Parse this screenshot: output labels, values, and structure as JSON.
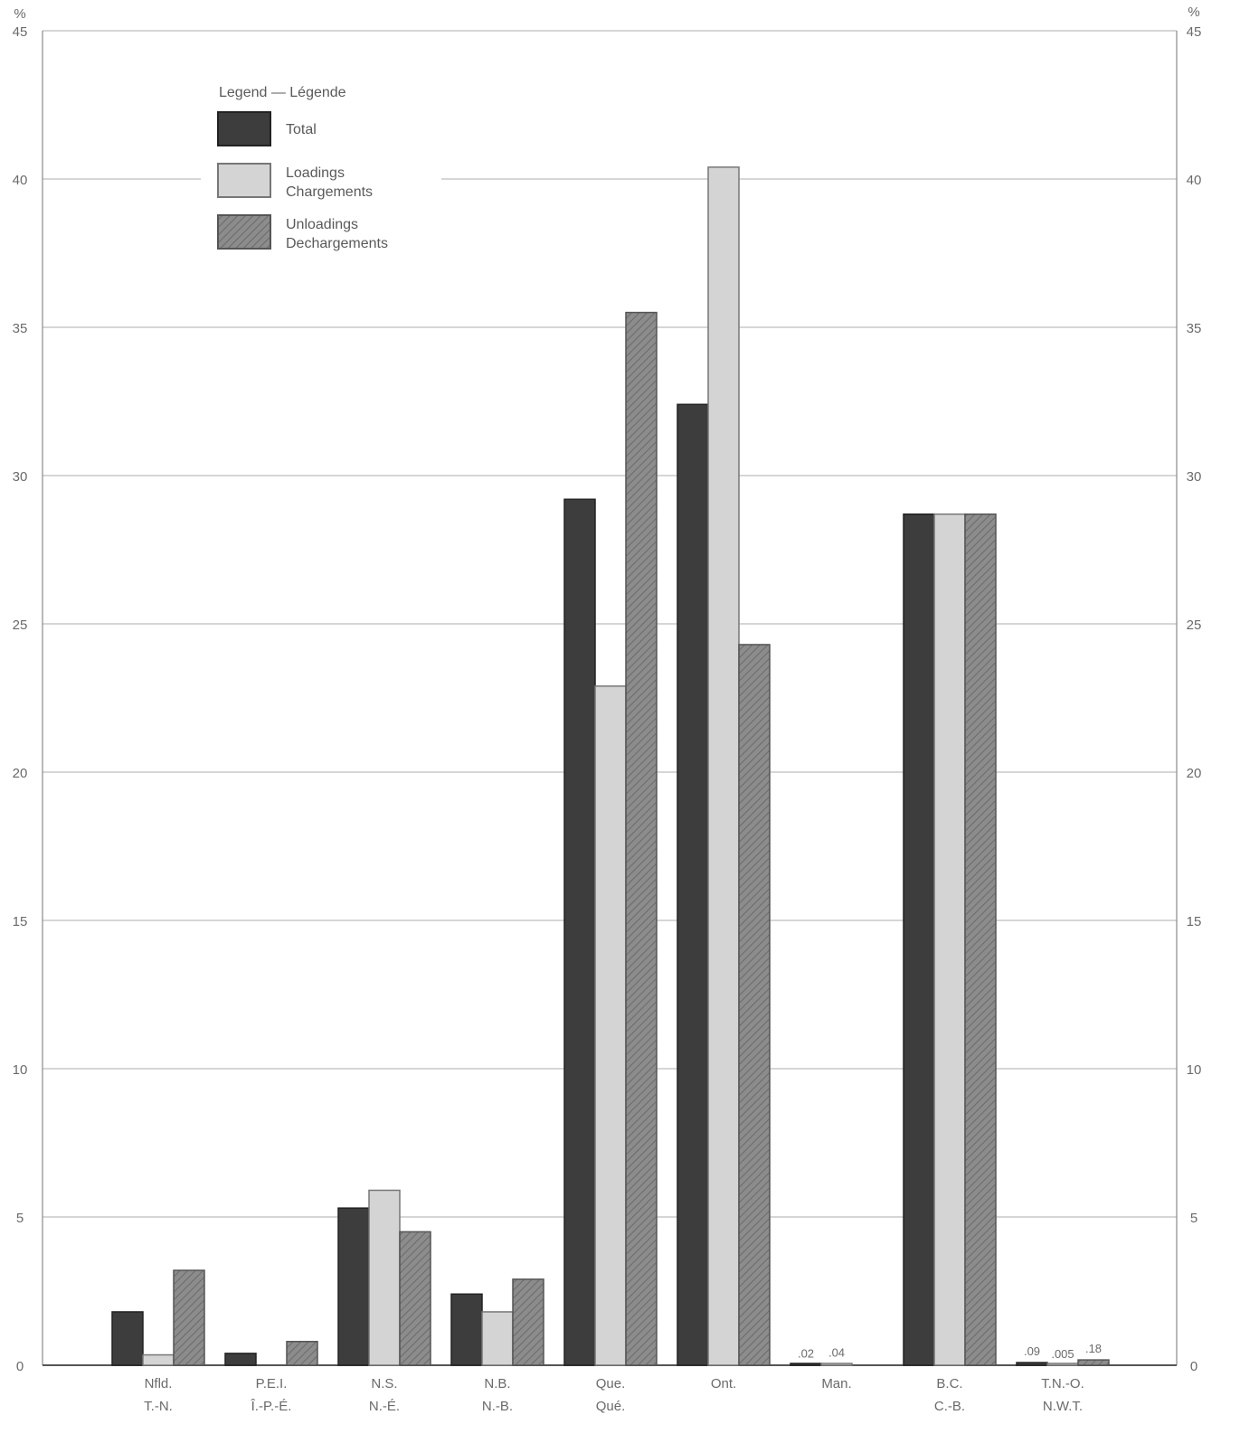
{
  "chart_data": {
    "type": "bar",
    "y_unit_left": "%",
    "y_unit_right": "%",
    "ylim": [
      0,
      45
    ],
    "yticks": [
      0,
      5,
      10,
      15,
      20,
      25,
      30,
      35,
      40,
      45
    ],
    "grid": true,
    "legend_title": "Legend — Légende",
    "legend_placement": "top-left",
    "categories": [
      {
        "label1": "Nfld.",
        "label2": "T.-N."
      },
      {
        "label1": "P.E.I.",
        "label2": "Î.-P.-É."
      },
      {
        "label1": "N.S.",
        "label2": "N.-É."
      },
      {
        "label1": "N.B.",
        "label2": "N.-B."
      },
      {
        "label1": "Que.",
        "label2": "Qué."
      },
      {
        "label1": "Ont.",
        "label2": ""
      },
      {
        "label1": "Man.",
        "label2": ""
      },
      {
        "label1": "B.C.",
        "label2": "C.-B."
      },
      {
        "label1": "T.N.-O.",
        "label2": "N.W.T."
      }
    ],
    "series": [
      {
        "name": "Total",
        "color": "#3a3a3a",
        "values": [
          1.8,
          0.4,
          5.3,
          2.4,
          29.2,
          32.4,
          0.02,
          28.7,
          0.09
        ]
      },
      {
        "name": "Loadings Chargements",
        "color": "#d2d2d2",
        "values": [
          0.35,
          0,
          5.9,
          1.8,
          22.9,
          40.4,
          0.04,
          28.7,
          0.005
        ]
      },
      {
        "name": "Unloadings Dechargements",
        "color": "#8a8a8a",
        "values": [
          3.2,
          0.8,
          4.5,
          2.9,
          35.5,
          24.3,
          0,
          28.7,
          0.18
        ]
      }
    ],
    "data_labels": [
      {
        "category": 6,
        "series": 0,
        "text": ".02"
      },
      {
        "category": 6,
        "series": 1,
        "text": ".04"
      },
      {
        "category": 8,
        "series": 0,
        "text": ".09"
      },
      {
        "category": 8,
        "series": 1,
        "text": ".005"
      },
      {
        "category": 8,
        "series": 2,
        "text": ".18"
      }
    ]
  }
}
